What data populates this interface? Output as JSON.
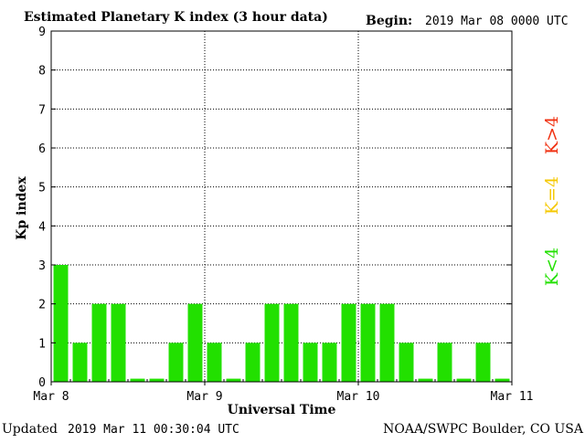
{
  "header": {
    "title": "Estimated Planetary K index (3 hour data)",
    "begin_label": "Begin:",
    "begin_value": "2019 Mar 08 0000 UTC"
  },
  "footer": {
    "updated_label": "Updated",
    "updated_value": "2019 Mar 11 00:30:04 UTC",
    "source": "NOAA/SWPC Boulder, CO USA"
  },
  "legend": [
    {
      "label": "K<4",
      "color": "#22e000"
    },
    {
      "label": "K=4",
      "color": "#f5c800"
    },
    {
      "label": "K>4",
      "color": "#f03010"
    }
  ],
  "chart_data": {
    "type": "bar",
    "title": "Estimated Planetary K index (3 hour data)",
    "xlabel": "Universal Time",
    "ylabel": "Kp index",
    "ylim": [
      0,
      9
    ],
    "yticks": [
      0,
      1,
      2,
      3,
      4,
      5,
      6,
      7,
      8,
      9
    ],
    "xticks": [
      "Mar 8",
      "Mar 9",
      "Mar 10",
      "Mar 11"
    ],
    "grid": true,
    "bar_color": "#22e000",
    "values": [
      3,
      1,
      2,
      2,
      0,
      0,
      1,
      2,
      1,
      0,
      1,
      2,
      2,
      1,
      1,
      2,
      2,
      2,
      1,
      0,
      1,
      0,
      1,
      0
    ]
  }
}
